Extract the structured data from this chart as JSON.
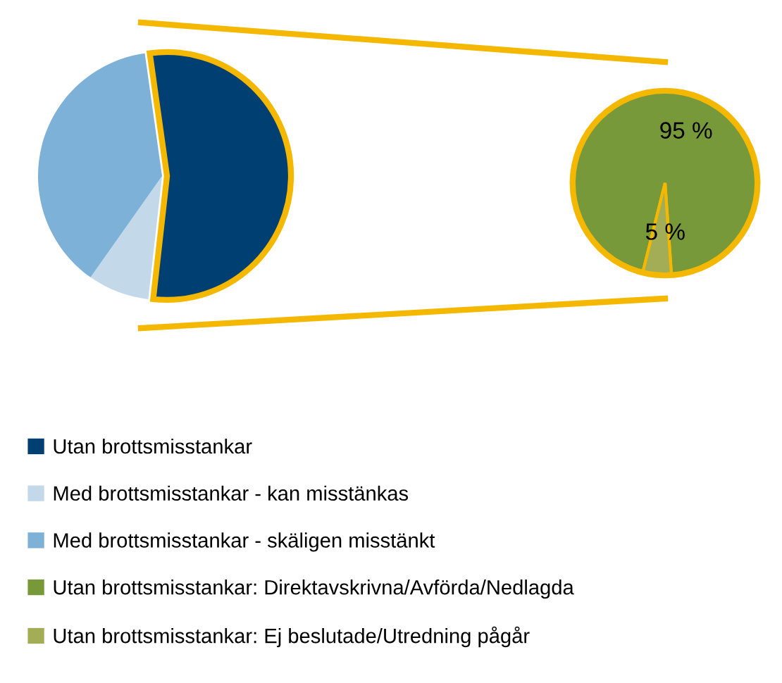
{
  "chart_data": [
    {
      "type": "pie",
      "categories": [
        "Utan brottsmisstankar",
        "Med brottsmisstankar - kan misstänkas",
        "Med brottsmisstankar - skäligen misstänkt"
      ],
      "values": [
        54,
        8,
        38
      ],
      "colors": [
        "#003f72",
        "#c3d9ea",
        "#7eb1d7"
      ],
      "legend": "bottom"
    },
    {
      "type": "pie",
      "categories": [
        "Utan brottsmisstankar: Direktavskrivna/Avförda/Nedlagda",
        "Utan brottsmisstankar: Ej beslutade/Utredning pågår"
      ],
      "values": [
        95,
        5
      ],
      "colors": [
        "#77993a",
        "#a3ad55"
      ],
      "value_labels": [
        "95 %",
        "5 %"
      ],
      "legend": "bottom"
    }
  ]
}
